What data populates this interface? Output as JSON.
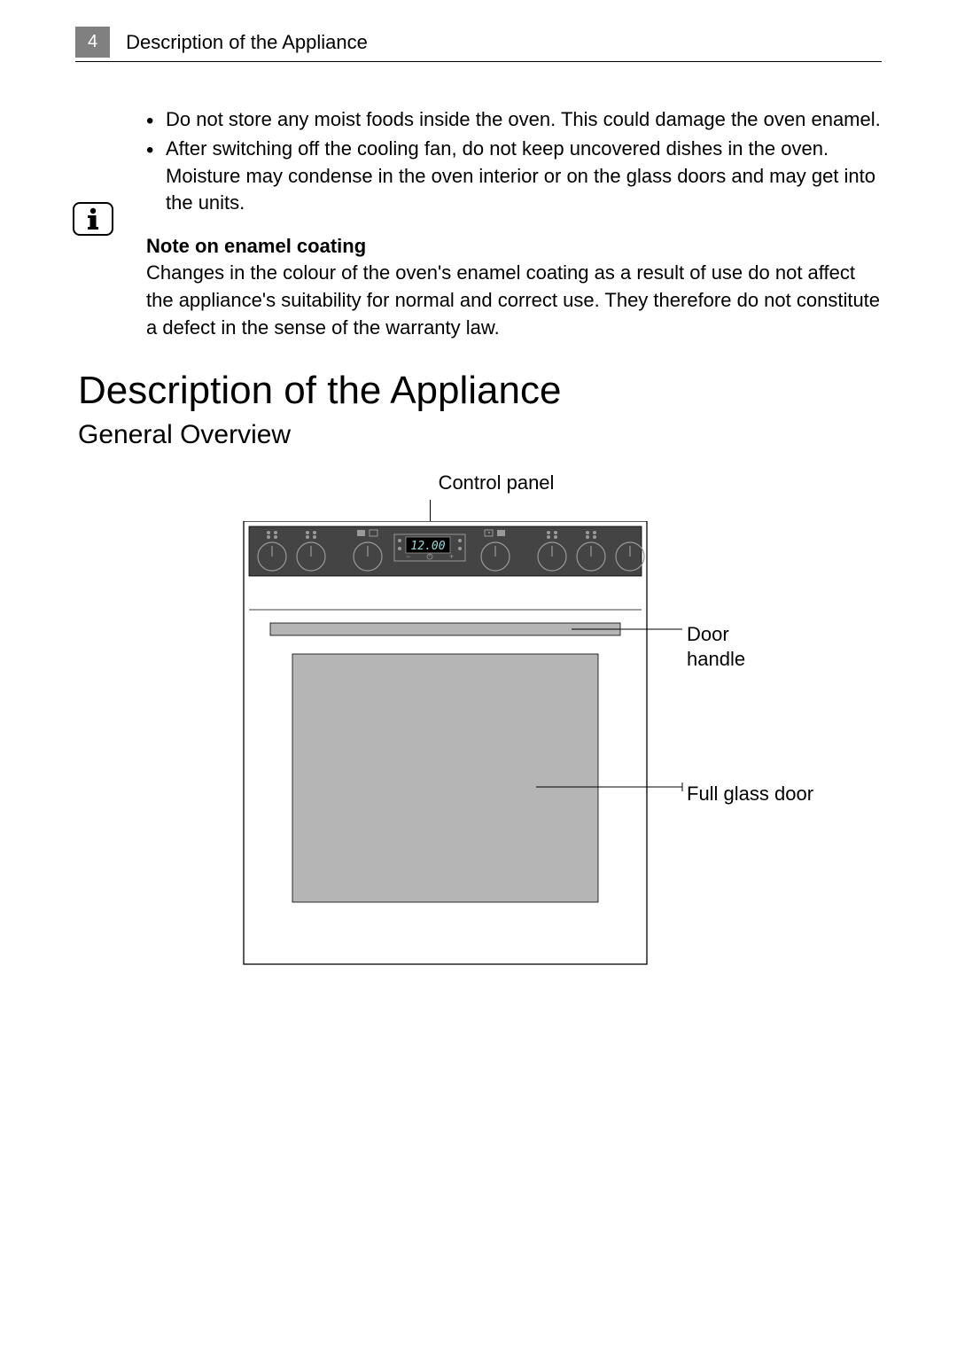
{
  "header": {
    "page_number": "4",
    "title": "Description of the Appliance"
  },
  "bullets": {
    "item1": "Do not store any moist foods inside the oven. This could damage the oven enamel.",
    "item2": "After switching off the cooling fan, do not keep uncovered dishes in the oven. Moisture may condense in the oven interior or on the glass doors and may get into the units."
  },
  "note": {
    "title": "Note on enamel coating",
    "text": "Changes in the colour of the oven's enamel coating as a result of use do not affect the appliance's suitability for normal and correct use. They therefore do not constitute a defect in the sense of the warranty law."
  },
  "section": {
    "heading": "Description of the Appliance",
    "subheading": "General Overview"
  },
  "diagram": {
    "label_top": "Control panel",
    "label_door_handle": "Door handle",
    "label_full_glass_door": "Full glass door",
    "clock_display": "12.00",
    "colors": {
      "outline": "#000000",
      "panel_fill": "#444444",
      "body_fill": "#b5b5b5",
      "clock_bg": "#000000",
      "clock_text": "#98d8d8",
      "knob_stroke": "#888888"
    }
  }
}
